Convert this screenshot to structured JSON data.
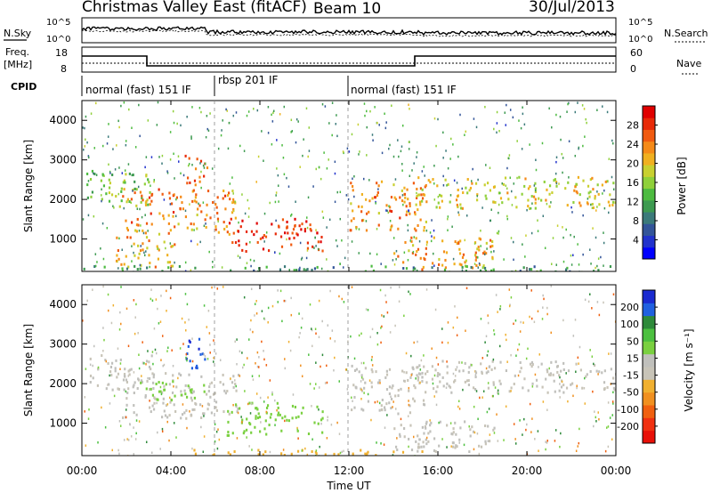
{
  "header": {
    "station": "Christmas Valley East (fitACF)",
    "beam": "Beam 10",
    "date": "30/Jul/2013"
  },
  "noise_panel": {
    "left_label": "N.Sky",
    "right_label": "N.Search",
    "y_ticks_left": [
      "10^5",
      "10^0"
    ],
    "y_ticks_right": [
      "10^5",
      "10^0"
    ]
  },
  "freq_panel": {
    "left_label_line1": "Freq.",
    "left_label_line2": "[MHz]",
    "right_label": "Nave",
    "y_ticks_left": [
      "18",
      "8"
    ],
    "y_ticks_right": [
      "60",
      "0"
    ]
  },
  "cpid": {
    "label": "CPID",
    "segments": [
      {
        "text": "normal (fast) 151 IF",
        "start_hour": 0
      },
      {
        "text": "rbsp 201 IF",
        "start_hour": 6
      },
      {
        "text": "normal (fast) 151 IF",
        "start_hour": 12
      }
    ]
  },
  "x_axis": {
    "label": "Time UT",
    "ticks": [
      "00:00",
      "04:00",
      "08:00",
      "12:00",
      "16:00",
      "20:00",
      "00:00"
    ]
  },
  "chart_data": [
    {
      "type": "heatmap",
      "name": "Power",
      "ylabel": "Slant Range [km]",
      "y_ticks": [
        "1000",
        "2000",
        "3000",
        "4000"
      ],
      "ylim": [
        180,
        4500
      ],
      "xlim_hours": [
        0,
        24
      ],
      "colorbar": {
        "label": "Power [dB]",
        "ticks": [
          "4",
          "8",
          "12",
          "16",
          "20",
          "24",
          "28"
        ],
        "range": [
          0,
          30
        ],
        "colors": [
          "#0000ff",
          "#2233cc",
          "#335599",
          "#3b7a7a",
          "#3d9a50",
          "#4dbb40",
          "#8fd03a",
          "#c8d030",
          "#f0b020",
          "#f58a18",
          "#f05a10",
          "#e82a08",
          "#e00000"
        ]
      },
      "echo_regions": [
        {
          "t": [
            0.2,
            3.2
          ],
          "r": [
            1850,
            2750
          ],
          "power": 14
        },
        {
          "t": [
            1.8,
            7.0
          ],
          "r": [
            1150,
            2300
          ],
          "power": 22
        },
        {
          "t": [
            6.5,
            10.8
          ],
          "r": [
            700,
            1550
          ],
          "power": 27
        },
        {
          "t": [
            4.6,
            5.6
          ],
          "r": [
            2400,
            3200
          ],
          "power": 25
        },
        {
          "t": [
            1.5,
            4.2
          ],
          "r": [
            300,
            1100
          ],
          "power": 20
        },
        {
          "t": [
            12.0,
            15.5
          ],
          "r": [
            1200,
            2500
          ],
          "power": 22
        },
        {
          "t": [
            15.0,
            24.0
          ],
          "r": [
            1800,
            2600
          ],
          "power": 18
        },
        {
          "t": [
            14.0,
            18.5
          ],
          "r": [
            250,
            1100
          ],
          "power": 21
        },
        {
          "t": [
            0.0,
            24.0
          ],
          "r": [
            180,
            350
          ],
          "power": 10
        }
      ]
    },
    {
      "type": "heatmap",
      "name": "Velocity",
      "ylabel": "Slant Range [km]",
      "y_ticks": [
        "1000",
        "2000",
        "3000",
        "4000"
      ],
      "ylim": [
        180,
        4500
      ],
      "xlim_hours": [
        0,
        24
      ],
      "colorbar": {
        "label": "Velocity [m s⁻¹]",
        "ticks": [
          "200",
          "100",
          "50",
          "15",
          "-15",
          "-50",
          "-100",
          "-200"
        ],
        "range": [
          -250,
          250
        ],
        "colors": [
          "#1a2ad0",
          "#2060e0",
          "#2e8a3a",
          "#4cc040",
          "#7ad040",
          "#c0c0bc",
          "#c8c4b8",
          "#f0b030",
          "#f09020",
          "#f06010",
          "#f03010",
          "#e81008"
        ]
      },
      "echo_regions": [
        {
          "t": [
            0.2,
            3.2
          ],
          "r": [
            1850,
            2750
          ],
          "velocity": 0
        },
        {
          "t": [
            1.8,
            7.0
          ],
          "r": [
            1150,
            2300
          ],
          "velocity": 0
        },
        {
          "t": [
            6.5,
            10.8
          ],
          "r": [
            700,
            1550
          ],
          "velocity": 60
        },
        {
          "t": [
            4.6,
            5.6
          ],
          "r": [
            2400,
            3200
          ],
          "velocity": 200
        },
        {
          "t": [
            2.5,
            5.5
          ],
          "r": [
            1600,
            2100
          ],
          "velocity": 60
        },
        {
          "t": [
            12.0,
            15.5
          ],
          "r": [
            1200,
            2500
          ],
          "velocity": 0
        },
        {
          "t": [
            15.0,
            24.0
          ],
          "r": [
            1800,
            2600
          ],
          "velocity": 0
        },
        {
          "t": [
            14.0,
            18.5
          ],
          "r": [
            250,
            1100
          ],
          "velocity": 0
        },
        {
          "t": [
            5.0,
            16.0
          ],
          "r": [
            180,
            350
          ],
          "velocity": -60
        }
      ]
    }
  ]
}
